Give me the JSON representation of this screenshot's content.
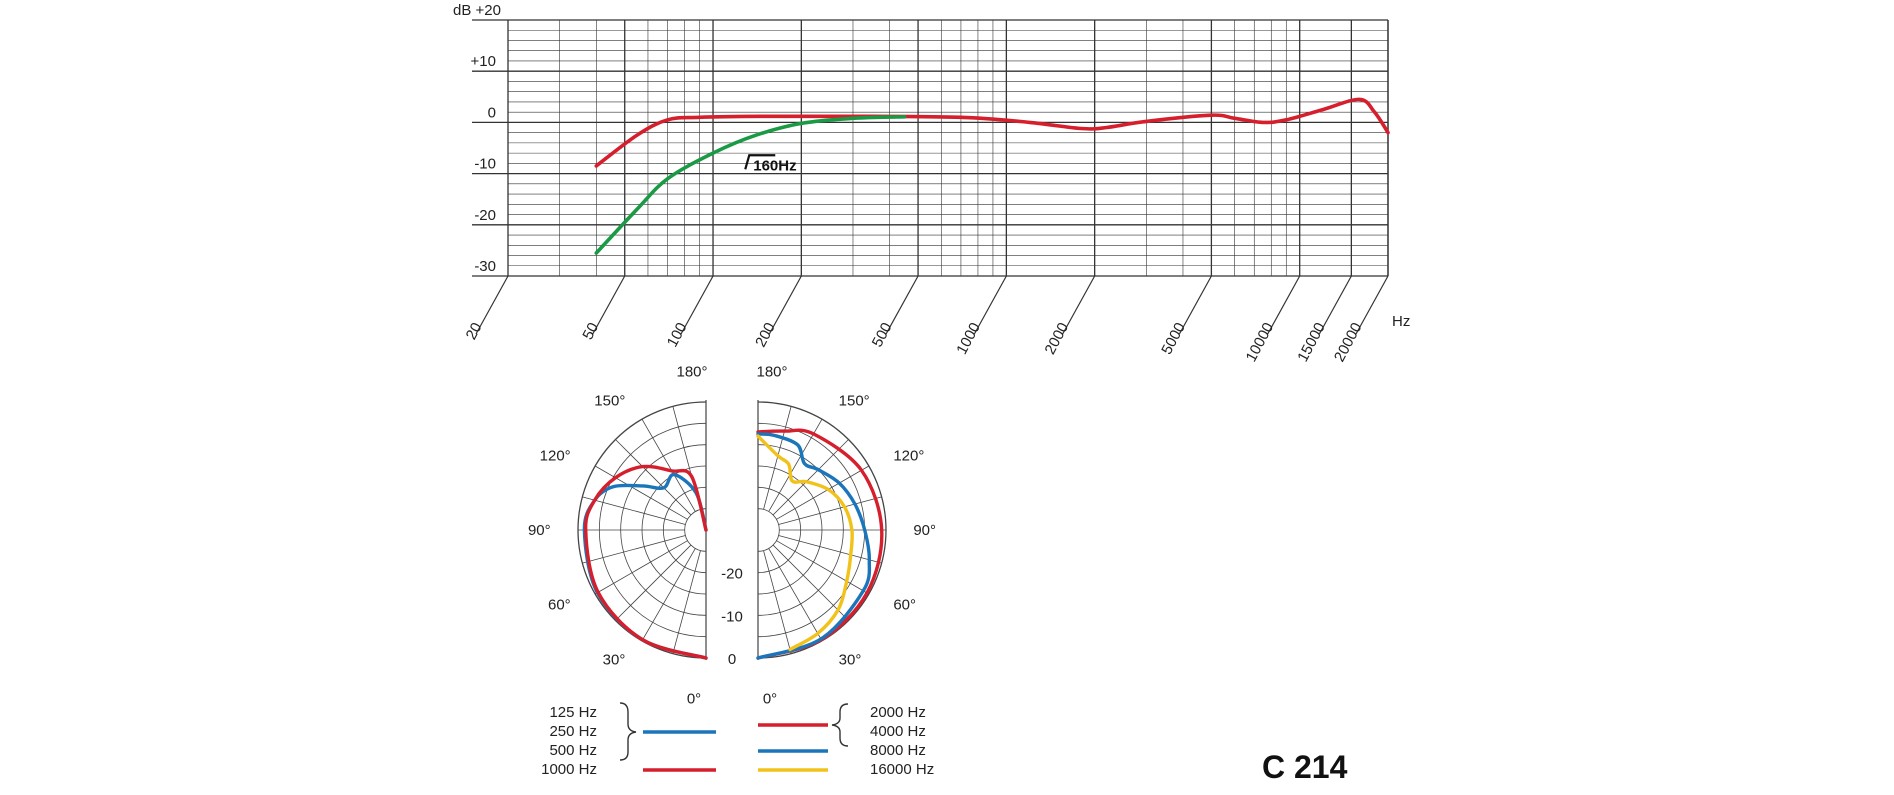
{
  "model": "C 214",
  "chart_data": [
    {
      "type": "line",
      "name": "frequency-response",
      "xscale": "log",
      "xlim": [
        20,
        20000
      ],
      "ylim": [
        -30,
        20
      ],
      "yticks": [
        {
          "v": 20,
          "label": "dB  +20"
        },
        {
          "v": 10,
          "label": "+10"
        },
        {
          "v": 0,
          "label": "0"
        },
        {
          "v": -10,
          "label": "-10"
        },
        {
          "v": -20,
          "label": "-20"
        },
        {
          "v": -30,
          "label": "-30"
        }
      ],
      "xticks": [
        {
          "v": 20,
          "label": "20"
        },
        {
          "v": 50,
          "label": "50"
        },
        {
          "v": 100,
          "label": "100"
        },
        {
          "v": 200,
          "label": "200"
        },
        {
          "v": 500,
          "label": "500"
        },
        {
          "v": 1000,
          "label": "1000"
        },
        {
          "v": 2000,
          "label": "2000"
        },
        {
          "v": 5000,
          "label": "5000"
        },
        {
          "v": 10000,
          "label": "10000"
        },
        {
          "v": 15000,
          "label": "15000"
        },
        {
          "v": 20000,
          "label": "20000"
        }
      ],
      "xunit": "Hz",
      "annotation": "160Hz",
      "annotation_pos": {
        "x": 135,
        "y": -7.2
      },
      "series": [
        {
          "color": "#d61f2c",
          "points": [
            [
              40,
              -8.5
            ],
            [
              55,
              -2.5
            ],
            [
              70,
              0.5
            ],
            [
              90,
              1
            ],
            [
              150,
              1.2
            ],
            [
              300,
              1.2
            ],
            [
              700,
              1
            ],
            [
              1200,
              0
            ],
            [
              1800,
              -1.2
            ],
            [
              2200,
              -1
            ],
            [
              3000,
              0.2
            ],
            [
              5000,
              1.4
            ],
            [
              6000,
              0.8
            ],
            [
              7500,
              0
            ],
            [
              9000,
              0.5
            ],
            [
              12000,
              2.5
            ],
            [
              16000,
              4.5
            ],
            [
              18000,
              2
            ],
            [
              20000,
              -2
            ]
          ]
        },
        {
          "color": "#1a9a45",
          "points": [
            [
              40,
              -25.5
            ],
            [
              55,
              -17
            ],
            [
              70,
              -11
            ],
            [
              100,
              -6
            ],
            [
              140,
              -2.5
            ],
            [
              200,
              -0.2
            ],
            [
              300,
              0.8
            ],
            [
              450,
              1.1
            ]
          ]
        }
      ]
    },
    {
      "type": "polar",
      "name": "polar-pattern",
      "rlim": [
        -30,
        0
      ],
      "radial_labels": [
        {
          "v": -20,
          "label": "-20"
        },
        {
          "v": -10,
          "label": "-10"
        },
        {
          "v": 0,
          "label": "0"
        }
      ],
      "angle_labels": {
        "left": [
          {
            "deg": 180,
            "label": "180°"
          },
          {
            "deg": 150,
            "label": "150°"
          },
          {
            "deg": 120,
            "label": "120°"
          },
          {
            "deg": 90,
            "label": "90°"
          },
          {
            "deg": 60,
            "label": "60°"
          },
          {
            "deg": 30,
            "label": "30°"
          },
          {
            "deg": 0,
            "label": "0°"
          }
        ],
        "right": [
          {
            "deg": 180,
            "label": "180°"
          },
          {
            "deg": 150,
            "label": "150°"
          },
          {
            "deg": 120,
            "label": "120°"
          },
          {
            "deg": 90,
            "label": "90°"
          },
          {
            "deg": 60,
            "label": "60°"
          },
          {
            "deg": 30,
            "label": "30°"
          },
          {
            "deg": 0,
            "label": "0°"
          }
        ]
      },
      "series": [
        {
          "side": "left",
          "color": "#1b75bb",
          "legend": "125 Hz, 250 Hz, 500 Hz",
          "points": [
            [
              0,
              0
            ],
            [
              30,
              -0.3
            ],
            [
              60,
              -0.6
            ],
            [
              90,
              -1.5
            ],
            [
              105,
              -3
            ],
            [
              115,
              -6
            ],
            [
              125,
              -12
            ],
            [
              135,
              -16
            ],
            [
              150,
              -15
            ],
            [
              165,
              -21
            ],
            [
              180,
              -30
            ]
          ]
        },
        {
          "side": "left",
          "color": "#d61f2c",
          "legend": "1000 Hz",
          "points": [
            [
              0,
              0
            ],
            [
              30,
              -0.3
            ],
            [
              60,
              -0.8
            ],
            [
              90,
              -1.8
            ],
            [
              105,
              -3
            ],
            [
              120,
              -5.5
            ],
            [
              135,
              -9
            ],
            [
              150,
              -14
            ],
            [
              165,
              -17
            ],
            [
              180,
              -30
            ]
          ]
        },
        {
          "side": "right",
          "color": "#d61f2c",
          "legend": "2000 Hz, 4000 Hz",
          "points": [
            [
              0,
              0
            ],
            [
              30,
              -0.3
            ],
            [
              60,
              -0.5
            ],
            [
              90,
              -1
            ],
            [
              120,
              -2
            ],
            [
              150,
              -4
            ],
            [
              165,
              -6
            ],
            [
              180,
              -7
            ]
          ]
        },
        {
          "side": "right",
          "color": "#1b75bb",
          "legend": "8000 Hz",
          "points": [
            [
              0,
              0
            ],
            [
              30,
              -0.5
            ],
            [
              60,
              -1.5
            ],
            [
              75,
              -3
            ],
            [
              90,
              -5
            ],
            [
              105,
              -6.5
            ],
            [
              120,
              -8
            ],
            [
              135,
              -10
            ],
            [
              145,
              -11
            ],
            [
              155,
              -8
            ],
            [
              170,
              -7.5
            ],
            [
              180,
              -7.5
            ]
          ]
        },
        {
          "side": "right",
          "color": "#f2c21b",
          "legend": "16000 Hz",
          "points": [
            [
              15,
              -1
            ],
            [
              30,
              -2
            ],
            [
              45,
              -3.5
            ],
            [
              60,
              -6
            ],
            [
              75,
              -7.5
            ],
            [
              90,
              -8
            ],
            [
              105,
              -9
            ],
            [
              120,
              -11
            ],
            [
              135,
              -14
            ],
            [
              145,
              -16
            ],
            [
              155,
              -13
            ],
            [
              165,
              -12
            ],
            [
              180,
              -8
            ]
          ]
        }
      ],
      "legend": {
        "left": {
          "braced": [
            "125 Hz",
            "250 Hz",
            "500 Hz"
          ],
          "braced_color": "#1b75bb",
          "single": "1000 Hz",
          "single_color": "#d61f2c"
        },
        "right": [
          {
            "labels": [
              "2000 Hz",
              "4000 Hz"
            ],
            "color": "#d61f2c"
          },
          {
            "labels": [
              "8000 Hz"
            ],
            "color": "#1b75bb"
          },
          {
            "labels": [
              "16000 Hz"
            ],
            "color": "#f2c21b"
          }
        ]
      }
    }
  ]
}
